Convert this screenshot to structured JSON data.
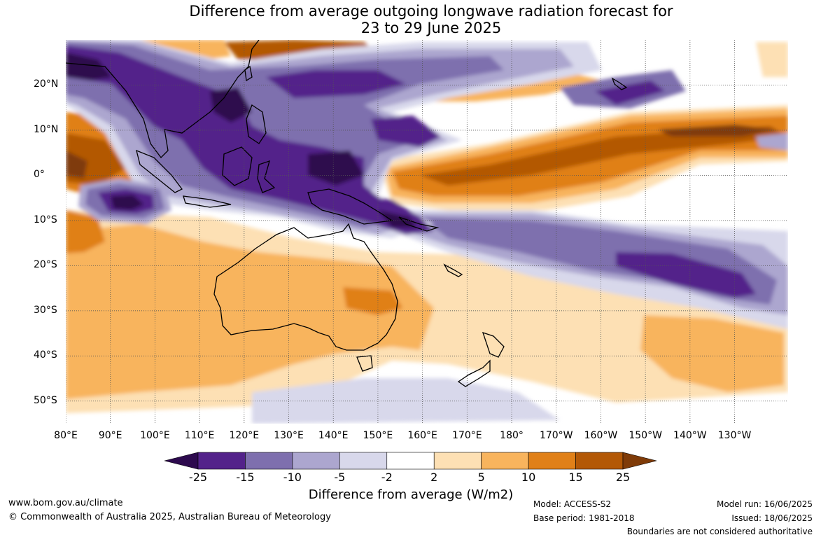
{
  "title": {
    "line1": "Difference from average outgoing longwave radiation forecast for",
    "line2": "23 to 29 June 2025"
  },
  "map": {
    "lat_labels": [
      "20°N",
      "10°N",
      "0°",
      "10°S",
      "20°S",
      "30°S",
      "40°S",
      "50°S"
    ],
    "lat_values": [
      20,
      10,
      0,
      -10,
      -20,
      -30,
      -40,
      -50
    ],
    "lon_labels": [
      "80°E",
      "90°E",
      "100°E",
      "110°E",
      "120°E",
      "130°E",
      "140°E",
      "150°E",
      "160°E",
      "170°E",
      "180°",
      "170°W",
      "160°W",
      "150°W",
      "140°W",
      "130°W"
    ],
    "lon_values": [
      80,
      90,
      100,
      110,
      120,
      130,
      140,
      150,
      160,
      170,
      180,
      190,
      200,
      210,
      220,
      230
    ],
    "extent": {
      "lon_min": 80,
      "lon_max": 242,
      "lat_min": -55,
      "lat_max": 30
    },
    "colors": {
      "below_-25": "#2d0a4e",
      "-25_-15": "#53228a",
      "-15_-10": "#7e6fae",
      "-10_-5": "#aca6cf",
      "-5_-2": "#d8d8eb",
      "-2_2": "#ffffff",
      "2_5": "#fde0b4",
      "5_10": "#f8b45d",
      "10_15": "#e08018",
      "15_25": "#b35806",
      "above_25": "#7f3b08"
    }
  },
  "colorbar": {
    "ticks": [
      "-25",
      "-15",
      "-10",
      "-5",
      "-2",
      "2",
      "5",
      "10",
      "15",
      "25"
    ],
    "colors": [
      "#2d0a4e",
      "#53228a",
      "#7e6fae",
      "#aca6cf",
      "#d8d8eb",
      "#ffffff",
      "#fde0b4",
      "#f8b45d",
      "#e08018",
      "#b35806",
      "#7f3b08"
    ],
    "title": "Difference from average (W/m2)"
  },
  "footer": {
    "website": "www.bom.gov.au/climate",
    "copyright": "© Commonwealth of Australia 2025, Australian Bureau of Meteorology",
    "model": "Model: ACCESS-S2",
    "base_period": "Base period: 1981-2018",
    "model_run": "Model run: 16/06/2025",
    "issued": "Issued: 18/06/2025",
    "disclaimer": "Boundaries are not considered authoritative"
  }
}
